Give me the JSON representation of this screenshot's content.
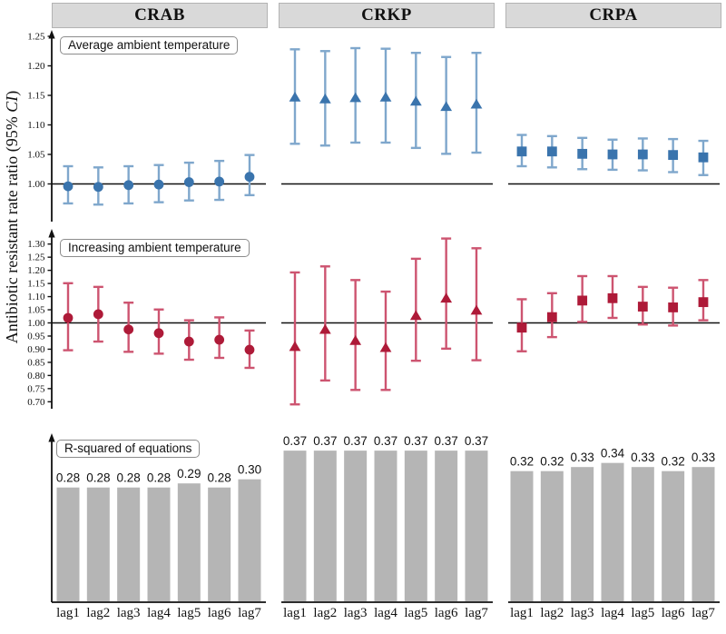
{
  "ylabel": {
    "pre": "Antibiotic resistant rate ratio (95% ",
    "italic": "CI",
    "post": ")"
  },
  "columns": [
    "CRAB",
    "CRKP",
    "CRPA"
  ],
  "categories": [
    "lag1",
    "lag2",
    "lag3",
    "lag4",
    "lag5",
    "lag6",
    "lag7"
  ],
  "colors": {
    "header_bg": "#d9d9d9",
    "blue_marker": "#3a74ad",
    "blue_whisker": "#7fa7cc",
    "red_marker": "#ae1a38",
    "red_whisker": "#cd5470",
    "bar_fill": "#b5b5b5",
    "axis": "#111111"
  },
  "chart_data": [
    {
      "type": "errorbar",
      "row_label": "Average ambient temperature",
      "ref_line": 1.0,
      "ylim": [
        0.955,
        1.265
      ],
      "yticks": [
        1.0,
        1.05,
        1.1,
        1.15,
        1.2,
        1.25
      ],
      "series": [
        {
          "name": "CRAB",
          "marker": "circle",
          "est": [
            0.996,
            0.995,
            0.998,
            0.999,
            1.003,
            1.004,
            1.012
          ],
          "lo": [
            0.967,
            0.965,
            0.967,
            0.969,
            0.972,
            0.973,
            0.981
          ],
          "hi": [
            1.03,
            1.028,
            1.03,
            1.032,
            1.036,
            1.039,
            1.049
          ]
        },
        {
          "name": "CRKP",
          "marker": "triangle",
          "est": [
            1.147,
            1.144,
            1.146,
            1.147,
            1.14,
            1.131,
            1.135
          ],
          "lo": [
            1.068,
            1.065,
            1.07,
            1.07,
            1.061,
            1.051,
            1.053
          ],
          "hi": [
            1.228,
            1.225,
            1.23,
            1.229,
            1.222,
            1.215,
            1.222
          ]
        },
        {
          "name": "CRPA",
          "marker": "square",
          "est": [
            1.055,
            1.055,
            1.051,
            1.05,
            1.05,
            1.049,
            1.045
          ],
          "lo": [
            1.03,
            1.028,
            1.025,
            1.024,
            1.023,
            1.02,
            1.015
          ],
          "hi": [
            1.083,
            1.081,
            1.078,
            1.075,
            1.077,
            1.076,
            1.073
          ]
        }
      ]
    },
    {
      "type": "errorbar",
      "row_label": "Increasing ambient temperature",
      "ref_line": 1.0,
      "ylim": [
        0.665,
        1.335
      ],
      "yticks": [
        0.7,
        0.75,
        0.8,
        0.85,
        0.9,
        0.95,
        1.0,
        1.05,
        1.1,
        1.15,
        1.2,
        1.25,
        1.3
      ],
      "series": [
        {
          "name": "CRAB",
          "marker": "circle",
          "est": [
            1.019,
            1.033,
            0.975,
            0.961,
            0.929,
            0.936,
            0.898
          ],
          "lo": [
            0.896,
            0.929,
            0.89,
            0.883,
            0.86,
            0.867,
            0.829
          ],
          "hi": [
            1.151,
            1.137,
            1.077,
            1.051,
            1.01,
            1.021,
            0.971
          ]
        },
        {
          "name": "CRKP",
          "marker": "triangle",
          "est": [
            0.91,
            0.975,
            0.933,
            0.906,
            1.028,
            1.094,
            1.048
          ],
          "lo": [
            0.69,
            0.781,
            0.745,
            0.745,
            0.856,
            0.902,
            0.858
          ],
          "hi": [
            1.192,
            1.215,
            1.163,
            1.119,
            1.244,
            1.321,
            1.284
          ]
        },
        {
          "name": "CRPA",
          "marker": "square",
          "est": [
            0.982,
            1.022,
            1.085,
            1.094,
            1.062,
            1.059,
            1.079
          ],
          "lo": [
            0.892,
            0.946,
            1.004,
            1.019,
            0.994,
            0.99,
            1.01
          ],
          "hi": [
            1.09,
            1.113,
            1.178,
            1.178,
            1.137,
            1.134,
            1.163
          ]
        }
      ]
    },
    {
      "type": "bar",
      "row_label": "R-squared of equations",
      "series": [
        {
          "name": "CRAB",
          "values": [
            0.28,
            0.28,
            0.28,
            0.28,
            0.29,
            0.28,
            0.3
          ]
        },
        {
          "name": "CRKP",
          "values": [
            0.37,
            0.37,
            0.37,
            0.37,
            0.37,
            0.37,
            0.37
          ]
        },
        {
          "name": "CRPA",
          "values": [
            0.32,
            0.32,
            0.33,
            0.34,
            0.33,
            0.32,
            0.33
          ]
        }
      ]
    }
  ]
}
